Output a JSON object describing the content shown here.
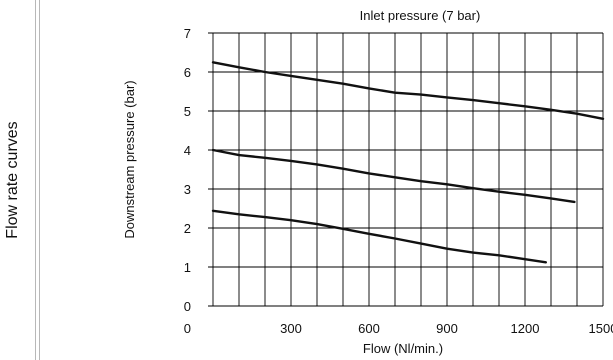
{
  "side_title": "Flow rate curves",
  "chart_data": {
    "type": "line",
    "title": "Inlet pressure (7 bar)",
    "xlabel": "Flow (Nl/min.)",
    "ylabel": "Downstream pressure  (bar)",
    "xlim": [
      0,
      1500
    ],
    "ylim": [
      0,
      7
    ],
    "xticks": [
      0,
      300,
      600,
      900,
      1200,
      1500
    ],
    "yticks": [
      0,
      1,
      2,
      3,
      4,
      5,
      6,
      7
    ],
    "grid": true,
    "line_color": "#111111",
    "series": [
      {
        "x": [
          0,
          100,
          200,
          300,
          400,
          500,
          600,
          700,
          800,
          900,
          1000,
          1100,
          1200,
          1300,
          1400,
          1500
        ],
        "y": [
          6.25,
          6.12,
          6.0,
          5.9,
          5.8,
          5.7,
          5.58,
          5.47,
          5.42,
          5.35,
          5.28,
          5.2,
          5.12,
          5.03,
          4.93,
          4.8
        ]
      },
      {
        "x": [
          0,
          100,
          200,
          300,
          400,
          500,
          600,
          700,
          800,
          900,
          1000,
          1100,
          1200,
          1300,
          1390
        ],
        "y": [
          4.0,
          3.87,
          3.8,
          3.72,
          3.63,
          3.52,
          3.4,
          3.3,
          3.2,
          3.12,
          3.02,
          2.93,
          2.85,
          2.76,
          2.67
        ]
      },
      {
        "x": [
          0,
          100,
          200,
          300,
          400,
          500,
          600,
          700,
          800,
          900,
          1000,
          1100,
          1200,
          1280
        ],
        "y": [
          2.44,
          2.35,
          2.28,
          2.2,
          2.1,
          1.98,
          1.85,
          1.73,
          1.6,
          1.47,
          1.37,
          1.3,
          1.2,
          1.12
        ]
      }
    ]
  }
}
